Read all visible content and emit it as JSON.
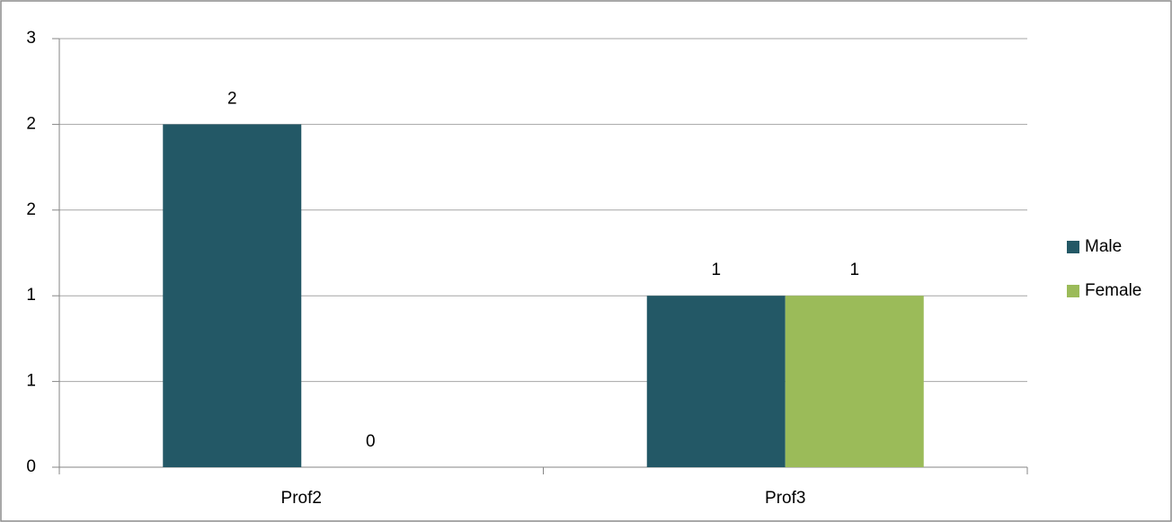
{
  "chart_data": {
    "type": "bar",
    "categories": [
      "Prof2",
      "Prof3"
    ],
    "series": [
      {
        "name": "Male",
        "color": "#235866",
        "values": [
          2,
          1
        ]
      },
      {
        "name": "Female",
        "color": "#9bbb59",
        "values": [
          0,
          1
        ]
      }
    ],
    "ylim": [
      0,
      2.5
    ],
    "yticks": [
      0,
      {
        "value": 0.5,
        "label": "1"
      },
      1,
      {
        "value": 1.5,
        "label": "2"
      },
      2,
      {
        "value": 2.5,
        "label": "3"
      }
    ],
    "grid": true,
    "legend": "right"
  }
}
